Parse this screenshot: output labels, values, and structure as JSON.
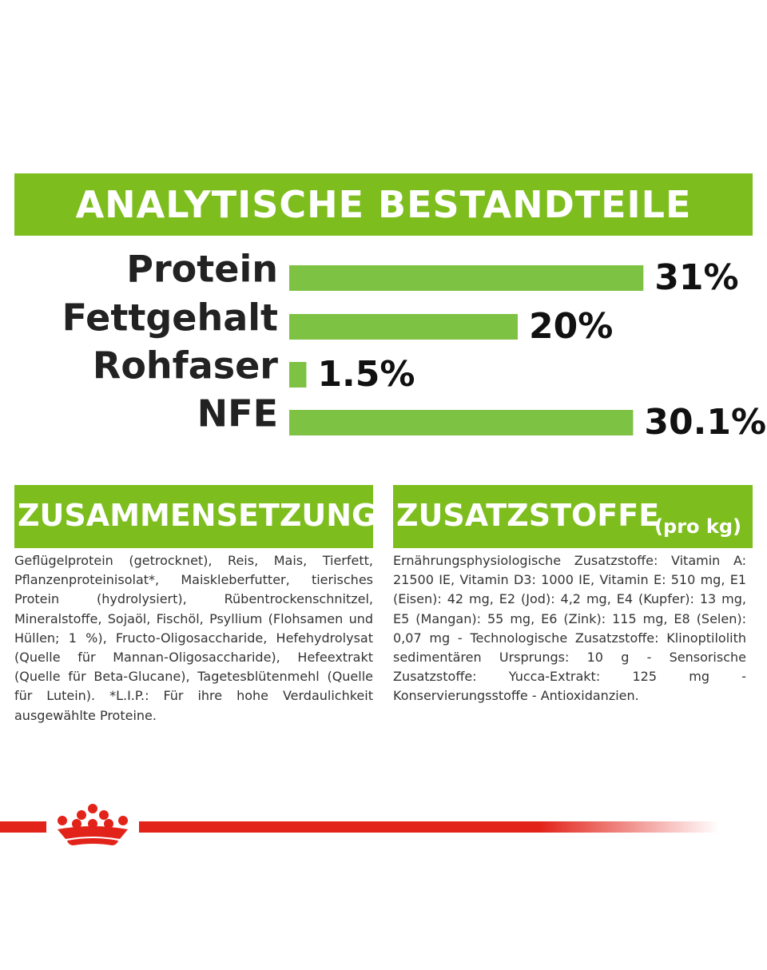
{
  "header": {
    "title": "ANALYTISCHE BESTANDTEILE"
  },
  "chart_data": {
    "type": "hbar",
    "categories": [
      "Protein",
      "Fettgehalt",
      "Rohfaser",
      "NFE"
    ],
    "values": [
      31,
      20,
      1.5,
      30.1
    ],
    "value_labels": [
      "31%",
      "20%",
      "1.5%",
      "30.1%"
    ],
    "color": "#7dc242"
  },
  "composition": {
    "title": "ZUSAMMENSETZUNG",
    "text": "Geflügelprotein (getrocknet), Reis, Mais, Tierfett, Pflanzenproteinisolat*, Maiskleberfutter, tierisches Protein (hydrolysiert), Rübentrockenschnitzel, Mineralstoffe, Sojaöl, Fischöl, Psyllium (Flohsamen und Hüllen; 1 %), Fructo-Oligosaccharide, Hefehydrolysat (Quelle für Mannan-Oligosaccharide), Hefeextrakt (Quelle für Beta-Glucane), Tagetesblütenmehl (Quelle für Lutein). *L.I.P.: Für ihre hohe Verdaulichkeit ausgewählte Proteine."
  },
  "additives": {
    "title": "ZUSATZSTOFFE",
    "subtitle": "(pro kg)",
    "text": "Ernährungsphysiologische Zusatzstoffe: Vitamin A: 21500 IE, Vitamin D3: 1000 IE, Vitamin E: 510 mg, E1 (Eisen): 42 mg, E2 (Jod): 4,2 mg, E4 (Kupfer): 13 mg, E5 (Mangan): 55 mg, E6 (Zink): 115 mg, E8 (Selen): 0,07 mg - Technologische Zusatzstoffe: Klinoptilolith sedimentären Ursprungs: 10 g - Sensorische Zusatzstoffe: Yucca-Extrakt: 125 mg - Konservierungsstoffe - Antioxidanzien."
  }
}
